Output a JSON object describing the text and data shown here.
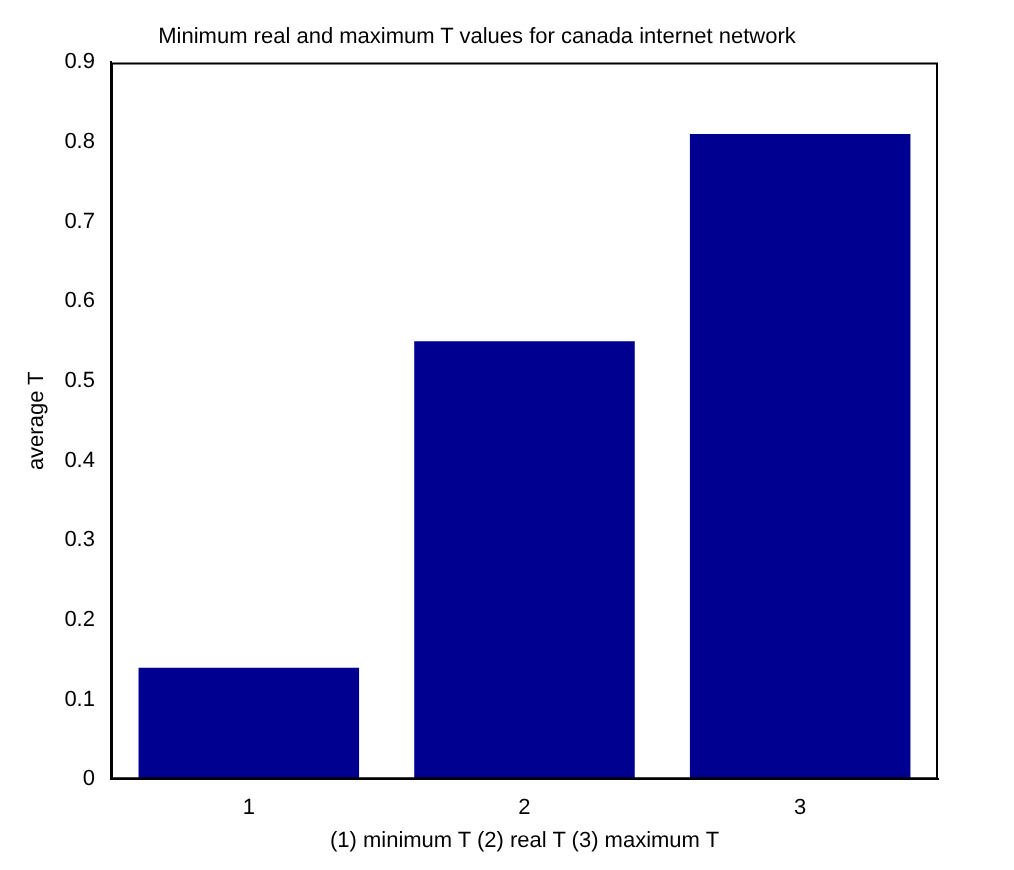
{
  "chart_data": {
    "type": "bar",
    "title": "Minimum real and maximum T values for canada internet network",
    "xlabel": "(1) minimum T (2) real T (3) maximum T",
    "ylabel": "average T",
    "categories": [
      "1",
      "2",
      "3"
    ],
    "values": [
      0.14,
      0.55,
      0.81
    ],
    "color": "#000090",
    "ylim": [
      0,
      0.9
    ],
    "yticks": [
      0,
      0.1,
      0.2,
      0.3,
      0.4,
      0.5,
      0.6,
      0.7,
      0.8,
      0.9
    ],
    "grid": false,
    "legend": false
  }
}
